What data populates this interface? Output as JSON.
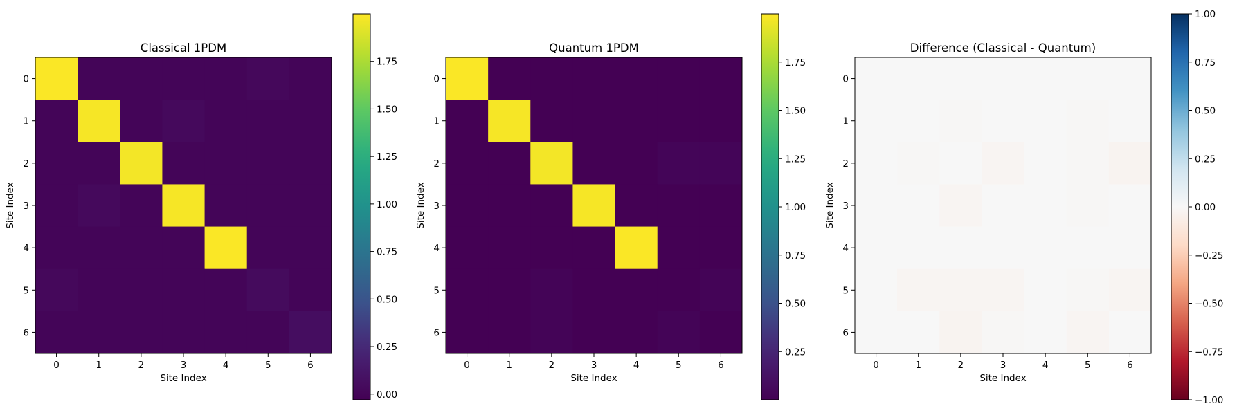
{
  "chart_data": [
    {
      "type": "heatmap",
      "title": "Classical 1PDM",
      "xlabel": "Site Index",
      "ylabel": "Site Index",
      "x_ticks": [
        "0",
        "1",
        "2",
        "3",
        "4",
        "5",
        "6"
      ],
      "y_ticks": [
        "0",
        "1",
        "2",
        "3",
        "4",
        "5",
        "6"
      ],
      "colormap": "viridis",
      "vmin": -0.03,
      "vmax": 2.0,
      "colorbar_ticks": [
        "0.00",
        "0.25",
        "0.50",
        "0.75",
        "1.00",
        "1.25",
        "1.50",
        "1.75"
      ],
      "colorbar_tick_values": [
        0,
        0.25,
        0.5,
        0.75,
        1.0,
        1.25,
        1.5,
        1.75
      ],
      "matrix": [
        [
          1.99,
          0.0,
          0.0,
          0.0,
          0.0,
          0.02,
          0.0
        ],
        [
          0.0,
          1.98,
          0.0,
          0.03,
          0.0,
          0.0,
          0.0
        ],
        [
          0.0,
          0.0,
          1.97,
          0.0,
          0.0,
          0.0,
          0.0
        ],
        [
          0.0,
          0.03,
          0.0,
          1.98,
          0.0,
          0.0,
          0.0
        ],
        [
          0.0,
          0.0,
          0.0,
          0.0,
          1.99,
          0.0,
          0.0
        ],
        [
          0.02,
          0.0,
          0.0,
          0.0,
          0.0,
          0.04,
          0.0
        ],
        [
          0.0,
          0.0,
          0.0,
          0.0,
          0.0,
          0.0,
          0.06
        ]
      ]
    },
    {
      "type": "heatmap",
      "title": "Quantum 1PDM",
      "xlabel": "Site Index",
      "ylabel": "Site Index",
      "x_ticks": [
        "0",
        "1",
        "2",
        "3",
        "4",
        "5",
        "6"
      ],
      "y_ticks": [
        "0",
        "1",
        "2",
        "3",
        "4",
        "5",
        "6"
      ],
      "colormap": "viridis",
      "vmin": 0.0,
      "vmax": 2.0,
      "colorbar_ticks": [
        "0.25",
        "0.50",
        "0.75",
        "1.00",
        "1.25",
        "1.50",
        "1.75"
      ],
      "colorbar_tick_values": [
        0.25,
        0.5,
        0.75,
        1.0,
        1.25,
        1.5,
        1.75
      ],
      "matrix": [
        [
          1.99,
          0.0,
          0.0,
          0.0,
          0.0,
          0.0,
          0.0
        ],
        [
          0.0,
          1.98,
          0.0,
          0.0,
          0.0,
          0.0,
          0.0
        ],
        [
          0.0,
          0.0,
          1.97,
          0.0,
          0.0,
          0.03,
          0.03
        ],
        [
          0.0,
          0.0,
          0.0,
          1.98,
          0.0,
          0.0,
          0.0
        ],
        [
          0.0,
          0.0,
          0.0,
          0.0,
          1.99,
          0.0,
          0.0
        ],
        [
          0.0,
          0.0,
          0.02,
          0.0,
          0.0,
          0.0,
          0.02
        ],
        [
          0.0,
          0.0,
          0.02,
          0.0,
          0.0,
          0.02,
          0.0
        ]
      ]
    },
    {
      "type": "heatmap",
      "title": "Difference (Classical - Quantum)",
      "xlabel": "Site Index",
      "ylabel": "Site Index",
      "x_ticks": [
        "0",
        "1",
        "2",
        "3",
        "4",
        "5",
        "6"
      ],
      "y_ticks": [
        "0",
        "1",
        "2",
        "3",
        "4",
        "5",
        "6"
      ],
      "colormap": "RdBu",
      "vmin": -1.0,
      "vmax": 1.0,
      "colorbar_ticks": [
        "−1.00",
        "−0.75",
        "−0.50",
        "−0.25",
        "0.00",
        "0.25",
        "0.50",
        "0.75",
        "1.00"
      ],
      "colorbar_tick_values": [
        -1.0,
        -0.75,
        -0.5,
        -0.25,
        0.0,
        0.25,
        0.5,
        0.75,
        1.0
      ],
      "matrix": [
        [
          0.0,
          0.0,
          0.0,
          0.0,
          0.0,
          0.0,
          0.0
        ],
        [
          0.0,
          0.0,
          -0.01,
          0.0,
          0.0,
          -0.01,
          0.0
        ],
        [
          0.0,
          -0.01,
          0.0,
          -0.02,
          0.0,
          -0.01,
          -0.03
        ],
        [
          0.0,
          0.0,
          -0.02,
          0.0,
          0.0,
          -0.01,
          0.0
        ],
        [
          0.0,
          0.0,
          0.0,
          0.0,
          0.0,
          0.0,
          0.0
        ],
        [
          0.0,
          -0.02,
          -0.02,
          -0.02,
          0.0,
          -0.01,
          -0.02
        ],
        [
          0.0,
          0.0,
          -0.03,
          -0.01,
          0.0,
          -0.02,
          0.0
        ]
      ]
    }
  ]
}
